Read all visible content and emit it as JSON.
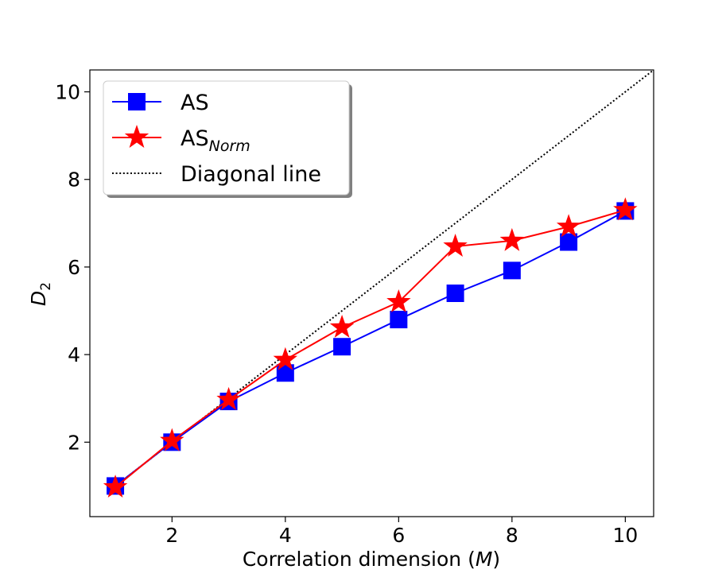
{
  "chart_data": {
    "type": "line",
    "title": "",
    "xlabel": "Correlation dimension (",
    "xlabel_var": "M",
    "xlabel_close": ")",
    "ylabel": "D",
    "ylabel_sub": "2",
    "xlim": [
      0.55,
      10.5
    ],
    "ylim": [
      0.3,
      10.5
    ],
    "xticks": [
      2,
      4,
      6,
      8,
      10
    ],
    "yticks": [
      2,
      4,
      6,
      8,
      10
    ],
    "grid": false,
    "legend_position": "top-left",
    "x": [
      1,
      2,
      3,
      4,
      5,
      6,
      7,
      8,
      9,
      10
    ],
    "series": [
      {
        "name": "AS",
        "name_sub": "",
        "color": "#0000ff",
        "marker": "square",
        "values": [
          1.0,
          2.0,
          2.93,
          3.58,
          4.18,
          4.8,
          5.4,
          5.92,
          6.57,
          7.28
        ]
      },
      {
        "name": "AS",
        "name_sub": "Norm",
        "color": "#ff0000",
        "marker": "star",
        "values": [
          0.97,
          2.03,
          2.97,
          3.88,
          4.62,
          5.2,
          6.47,
          6.6,
          6.92,
          7.3
        ]
      }
    ],
    "reference_line": {
      "name": "Diagonal line",
      "color": "#000000",
      "style": "dotted",
      "from": [
        1,
        1
      ],
      "to": [
        10.5,
        10.5
      ]
    }
  }
}
